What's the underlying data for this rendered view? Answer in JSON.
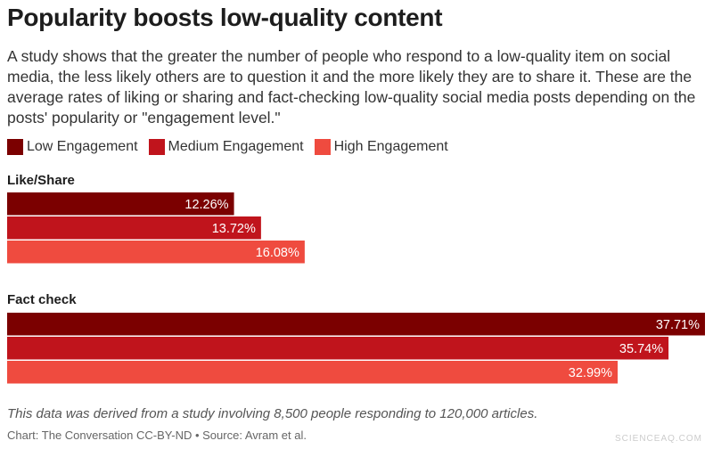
{
  "chart_data": {
    "type": "bar",
    "orientation": "horizontal",
    "title": "Popularity boosts low-quality content",
    "subtitle": "A study shows that the greater the number of people who respond to a low-quality item on social media, the less likely others are to question it and the more likely they are to share it. These are the average rates of liking or sharing and fact-checking low-quality social media posts depending on the posts' popularity or \"engagement level.\"",
    "categories": [
      "Like/Share",
      "Fact check"
    ],
    "series": [
      {
        "name": "Low Engagement",
        "color": "#7b0000",
        "values": [
          12.26,
          37.71
        ]
      },
      {
        "name": "Medium Engagement",
        "color": "#c0141c",
        "values": [
          13.72,
          35.74
        ]
      },
      {
        "name": "High Engagement",
        "color": "#ef4b3f",
        "values": [
          16.08,
          32.99
        ]
      }
    ],
    "value_suffix": "%",
    "xlim": [
      0,
      37.71
    ],
    "legend_position": "top-left",
    "grid": false
  },
  "note": "This data was derived from a study involving 8,500 people responding to 120,000 articles.",
  "source": "Chart: The Conversation CC-BY-ND • Source: Avram et al.",
  "watermark": "SCIENCEAQ.COM"
}
